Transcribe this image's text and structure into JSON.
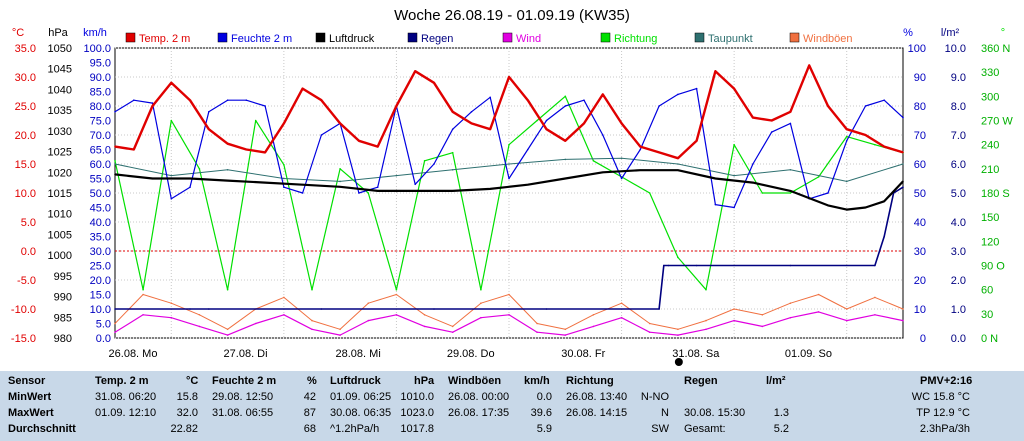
{
  "title": "Woche 26.08.19 - 01.09.19 (KW35)",
  "colors": {
    "temp": "#e00000",
    "hum": "#0000e0",
    "press": "#000000",
    "rain": "#000080",
    "wind": "#e000e0",
    "dir": "#00e000",
    "dew": "#2e7070",
    "gust": "#f07040"
  },
  "legend": [
    "Temp. 2 m",
    "Feuchte 2 m",
    "Luftdruck",
    "Regen",
    "Wind",
    "Richtung",
    "Taupunkt",
    "Windböen"
  ],
  "axes_units": {
    "temp": "°C",
    "press": "hPa",
    "wind": "km/h",
    "hum": "%",
    "rain": "l/m²",
    "dir": "°"
  },
  "days": [
    "26.08.  Mo",
    "27.08.  Di",
    "28.08.  Mi",
    "29.08.  Do",
    "30.08.  Fr",
    "31.08.  Sa",
    "01.09.  So"
  ],
  "chart_data": {
    "type": "line",
    "title": "Woche 26.08.19 - 01.09.19 (KW35)",
    "x": {
      "start": "26.08.2019 00:00",
      "end": "01.09.2019 24:00",
      "unit": "hours"
    },
    "axes": {
      "temp": {
        "label": "°C",
        "range": [
          -15,
          35
        ],
        "ticks": [
          "35.0",
          "30.0",
          "25.0",
          "20.0",
          "15.0",
          "10.0",
          "5.0",
          "0.0",
          "-5.0",
          "-10.0",
          "-15.0"
        ]
      },
      "press": {
        "label": "hPa",
        "range": [
          980,
          1050
        ],
        "ticks": [
          "1050",
          "1045",
          "1040",
          "1035",
          "1030",
          "1025",
          "1020",
          "1015",
          "1010",
          "1005",
          "1000",
          "995",
          "990",
          "985",
          "980"
        ]
      },
      "wind": {
        "label": "km/h",
        "range": [
          0,
          100
        ],
        "ticks": [
          "100.0",
          "95.0",
          "90.0",
          "85.0",
          "80.0",
          "75.0",
          "70.0",
          "65.0",
          "60.0",
          "55.0",
          "50.0",
          "45.0",
          "40.0",
          "35.0",
          "30.0",
          "25.0",
          "20.0",
          "15.0",
          "10.0",
          "5.0",
          "0.0"
        ]
      },
      "hum": {
        "label": "%",
        "range": [
          0,
          100
        ],
        "ticks": [
          "100",
          "90",
          "80",
          "70",
          "60",
          "50",
          "40",
          "30",
          "20",
          "10",
          "0"
        ]
      },
      "rain": {
        "label": "l/m²",
        "range": [
          0,
          10
        ],
        "ticks": [
          "10.0",
          "9.0",
          "8.0",
          "7.0",
          "6.0",
          "5.0",
          "4.0",
          "3.0",
          "2.0",
          "1.0",
          "0.0"
        ]
      },
      "dir": {
        "label": "°",
        "range": [
          0,
          360
        ],
        "ticks": [
          "360 N",
          "330",
          "300",
          "270 W",
          "240",
          "210",
          "180 S",
          "150",
          "120",
          "90 O",
          "60",
          "30",
          "0 N"
        ]
      }
    },
    "series": [
      {
        "name": "Temp. 2 m",
        "axis": "temp",
        "x": [
          0,
          4,
          8,
          12,
          16,
          20,
          24,
          28,
          32,
          36,
          40,
          44,
          48,
          52,
          56,
          60,
          64,
          68,
          72,
          76,
          80,
          84,
          88,
          92,
          96,
          100,
          104,
          108,
          112,
          116,
          120,
          124,
          128,
          132,
          136,
          140,
          144,
          148,
          152,
          156,
          160,
          164,
          168
        ],
        "values": [
          18,
          17.5,
          25,
          29,
          26,
          21,
          18.5,
          17.5,
          17,
          22,
          28,
          26,
          22,
          19,
          18,
          25,
          31,
          29,
          24,
          22,
          21,
          30,
          26,
          21,
          19,
          22,
          27,
          22,
          18,
          17,
          16,
          19,
          31,
          28,
          23,
          22.5,
          24,
          32,
          25,
          21,
          20,
          18,
          17
        ]
      },
      {
        "name": "Feuchte 2 m",
        "axis": "hum",
        "x": [
          0,
          4,
          8,
          12,
          16,
          20,
          24,
          28,
          32,
          36,
          40,
          44,
          48,
          52,
          56,
          60,
          64,
          68,
          72,
          76,
          80,
          84,
          88,
          92,
          96,
          100,
          104,
          108,
          112,
          116,
          120,
          124,
          128,
          132,
          136,
          140,
          144,
          148,
          152,
          156,
          160,
          164,
          168
        ],
        "values": [
          78,
          82,
          81,
          48,
          52,
          78,
          82,
          82,
          80,
          52,
          50,
          70,
          74,
          50,
          52,
          80,
          53,
          60,
          72,
          78,
          83,
          55,
          65,
          75,
          80,
          82,
          70,
          55,
          65,
          80,
          84,
          86,
          46,
          45,
          60,
          71,
          74,
          48,
          50,
          68,
          80,
          82,
          76
        ]
      },
      {
        "name": "Luftdruck",
        "axis": "press",
        "x": [
          0,
          8,
          16,
          24,
          32,
          40,
          48,
          56,
          64,
          72,
          80,
          88,
          96,
          104,
          112,
          120,
          128,
          136,
          144,
          152,
          156,
          160,
          164,
          168
        ],
        "values": [
          1019.5,
          1018.5,
          1018.5,
          1018,
          1017.5,
          1017,
          1016.5,
          1015.5,
          1015.5,
          1015.5,
          1016,
          1017,
          1018.5,
          1020,
          1020.5,
          1020.5,
          1018.5,
          1017.5,
          1015.5,
          1012,
          1011,
          1011.5,
          1013,
          1017.8
        ]
      },
      {
        "name": "Taupunkt",
        "axis": "temp",
        "x": [
          0,
          12,
          24,
          36,
          48,
          60,
          72,
          84,
          96,
          108,
          120,
          132,
          144,
          156,
          168
        ],
        "values": [
          15,
          13,
          14,
          12.5,
          12,
          13,
          14,
          15,
          15.8,
          16,
          15,
          13,
          14,
          12,
          15
        ]
      },
      {
        "name": "Richtung",
        "axis": "dir",
        "x": [
          0,
          6,
          12,
          18,
          24,
          30,
          36,
          42,
          48,
          54,
          60,
          66,
          72,
          78,
          84,
          90,
          96,
          102,
          108,
          114,
          120,
          126,
          132,
          138,
          144,
          150,
          156,
          162,
          168
        ],
        "values": [
          220,
          60,
          270,
          210,
          60,
          270,
          215,
          60,
          210,
          180,
          60,
          220,
          230,
          60,
          240,
          270,
          300,
          220,
          200,
          180,
          100,
          60,
          240,
          180,
          180,
          200,
          250,
          240,
          230
        ]
      },
      {
        "name": "Windböen",
        "axis": "wind",
        "x": [
          0,
          6,
          12,
          18,
          24,
          30,
          36,
          42,
          48,
          54,
          60,
          66,
          72,
          78,
          84,
          90,
          96,
          102,
          108,
          114,
          120,
          126,
          132,
          138,
          144,
          150,
          156,
          162,
          168
        ],
        "values": [
          5,
          15,
          12,
          8,
          3,
          10,
          14,
          6,
          3,
          12,
          15,
          8,
          4,
          12,
          15,
          5,
          3,
          8,
          12,
          5,
          3,
          6,
          10,
          8,
          12,
          15,
          10,
          14,
          10
        ]
      },
      {
        "name": "Wind",
        "axis": "wind",
        "x": [
          0,
          6,
          12,
          18,
          24,
          30,
          36,
          42,
          48,
          54,
          60,
          66,
          72,
          78,
          84,
          90,
          96,
          102,
          108,
          114,
          120,
          126,
          132,
          138,
          144,
          150,
          156,
          162,
          168
        ],
        "values": [
          2,
          8,
          7,
          4,
          1,
          5,
          8,
          3,
          1,
          6,
          8,
          4,
          2,
          7,
          8,
          2,
          1,
          4,
          7,
          2,
          1,
          3,
          6,
          4,
          7,
          9,
          6,
          8,
          6
        ]
      },
      {
        "name": "Regen",
        "axis": "rain",
        "x": [
          0,
          16,
          20,
          44,
          68,
          92,
          116,
          117,
          118,
          124,
          144,
          162,
          164,
          166,
          168
        ],
        "values": [
          1,
          1,
          1,
          1,
          1,
          1,
          1,
          2.5,
          2.5,
          2.5,
          2.5,
          2.5,
          3.5,
          5.0,
          5.2
        ]
      }
    ]
  },
  "table": {
    "headers": [
      {
        "label": "Sensor"
      },
      {
        "label": "Temp. 2 m",
        "unit": "°C"
      },
      {
        "label": "Feuchte  2 m",
        "unit": "%"
      },
      {
        "label": "Luftdruck",
        "unit": "hPa"
      },
      {
        "label": "Windböen",
        "unit": "km/h"
      },
      {
        "label": "Richtung",
        "unit": ""
      },
      {
        "label": "Regen",
        "unit": "l/m²"
      },
      {
        "label": "PMV+2:16"
      }
    ],
    "rows": [
      {
        "label": "MinWert",
        "temp_t": "31.08.  06:20",
        "temp_v": "15.8",
        "hum_t": "29.08.  12:50",
        "hum_v": "42",
        "press_t": "01.09.  06:25",
        "press_v": "1010.0",
        "gust_t": "26.08.  00:00",
        "gust_v": "0.0",
        "dir_t": "26.08.  13:40",
        "dir_v": "N-NO",
        "rain_t": "",
        "rain_v": "",
        "pmv": "WC 15.8 °C"
      },
      {
        "label": "MaxWert",
        "temp_t": "01.09.  12:10",
        "temp_v": "32.0",
        "hum_t": "31.08.  06:55",
        "hum_v": "87",
        "press_t": "30.08.  06:35",
        "press_v": "1023.0",
        "gust_t": "26.08.  17:35",
        "gust_v": "39.6",
        "dir_t": "26.08.  14:15",
        "dir_v": "N",
        "rain_t": "30.08.  15:30",
        "rain_v": "1.3",
        "pmv": "TP 12.9 °C"
      },
      {
        "label": "Durchschnitt",
        "temp_t": "",
        "temp_v": "22.82",
        "hum_t": "",
        "hum_v": "68",
        "press_t": "^1.2hPa/h",
        "press_v": "1017.8",
        "gust_t": "",
        "gust_v": "5.9",
        "dir_t": "",
        "dir_v": "SW",
        "rain_t": "Gesamt:",
        "rain_v": "5.2",
        "pmv": "2.3hPa/3h"
      }
    ]
  }
}
